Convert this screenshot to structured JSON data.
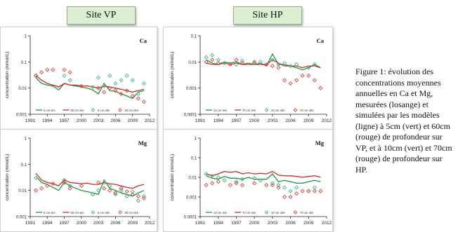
{
  "tabs": {
    "vp": "Site VP",
    "hp": "Site HP"
  },
  "caption": "Figure 1: évolution des concentrations moyennes annuelles en Ca et Mg, mesurées (losange) et simulées par les modèles (ligne) à 5cm (vert) et 60cm (rouge) de profondeur sur VP, et à 10cm (vert) et 70cm (rouge) de profondeur sur HP.",
  "colors": {
    "green": "#1a9641",
    "red": "#cc2a2a",
    "obs_green": "#3db58a",
    "obs_red": "#d9423a"
  },
  "chart_data": [
    {
      "type": "line",
      "element": "Ca",
      "site": "VP",
      "ylabel": "concentration (mmol/L)",
      "yscale": "log",
      "ylim": [
        0.001,
        1
      ],
      "yticks": [
        "0.001",
        "0.01",
        "0.1",
        "1"
      ],
      "xticks": [
        "1991",
        "1994",
        "1997",
        "2000",
        "2003",
        "2006",
        "2009",
        "2012"
      ],
      "xlim": [
        1991,
        2012
      ],
      "legend": [
        "5 cm sim",
        "60 cm sim",
        "5 cm obs",
        "60 cm obs"
      ],
      "series": [
        {
          "name": "5 cm sim",
          "kind": "line",
          "color": "green",
          "x": [
            1992,
            1993,
            1994,
            1995,
            1996,
            1997,
            1998,
            1999,
            2000,
            2001,
            2002,
            2003,
            2004,
            2005,
            2006,
            2007,
            2008,
            2009,
            2010,
            2011
          ],
          "y": [
            0.025,
            0.015,
            0.013,
            0.012,
            0.0085,
            0.015,
            0.013,
            0.012,
            0.011,
            0.01,
            0.0085,
            0.006,
            0.015,
            0.008,
            0.0075,
            0.006,
            0.005,
            0.004,
            0.007,
            0.008
          ]
        },
        {
          "name": "60 cm sim",
          "kind": "line",
          "color": "red",
          "x": [
            1992,
            1993,
            1994,
            1995,
            1996,
            1997,
            1998,
            1999,
            2000,
            2001,
            2002,
            2003,
            2004,
            2005,
            2006,
            2007,
            2008,
            2009,
            2010,
            2011
          ],
          "y": [
            0.03,
            0.02,
            0.015,
            0.013,
            0.011,
            0.015,
            0.013,
            0.013,
            0.012,
            0.012,
            0.011,
            0.01,
            0.012,
            0.011,
            0.01,
            0.009,
            0.008,
            0.007,
            0.008,
            0.009
          ]
        },
        {
          "name": "5 cm obs",
          "kind": "diamond",
          "color": "obs_green",
          "x": [
            1992,
            1997,
            1998,
            2002,
            2003,
            2004,
            2005,
            2006,
            2007,
            2008,
            2009,
            2010,
            2011
          ],
          "y": [
            0.03,
            0.03,
            0.02,
            0.011,
            0.025,
            0.012,
            0.03,
            0.015,
            0.02,
            0.03,
            0.02,
            0.006,
            0.015
          ]
        },
        {
          "name": "60 cm obs",
          "kind": "diamond",
          "color": "obs_red",
          "x": [
            1992,
            1993,
            1994,
            1995,
            1997,
            1998,
            2000,
            2003,
            2004,
            2005,
            2006,
            2007,
            2008,
            2009,
            2010,
            2011
          ],
          "y": [
            0.03,
            0.04,
            0.05,
            0.05,
            0.05,
            0.04,
            0.012,
            0.01,
            0.007,
            0.01,
            0.008,
            0.006,
            0.008,
            0.005,
            0.004,
            0.003
          ]
        }
      ]
    },
    {
      "type": "line",
      "element": "Ca",
      "site": "HP",
      "ylabel": "concentration (mmol/L)",
      "yscale": "log",
      "ylim": [
        0.0001,
        0.1
      ],
      "yticks": [
        "0.0001",
        "0.001",
        "0.01",
        "0.1"
      ],
      "xticks": [
        "1991",
        "1994",
        "1997",
        "2000",
        "2003",
        "2006",
        "2009",
        "2012"
      ],
      "xlim": [
        1991,
        2012
      ],
      "legend": [
        "10 cm sim",
        "70 cm sim",
        "10 cm obs",
        "70 cm obs"
      ],
      "series": [
        {
          "name": "10 cm sim",
          "kind": "line",
          "color": "green",
          "x": [
            1992,
            1993,
            1994,
            1995,
            1996,
            1997,
            1998,
            1999,
            2000,
            2001,
            2002,
            2003,
            2004,
            2005,
            2006,
            2007,
            2008,
            2009,
            2010,
            2011
          ],
          "y": [
            0.012,
            0.009,
            0.008,
            0.01,
            0.009,
            0.01,
            0.008,
            0.009,
            0.008,
            0.009,
            0.007,
            0.02,
            0.008,
            0.008,
            0.007,
            0.006,
            0.005,
            0.006,
            0.008,
            0.006
          ]
        },
        {
          "name": "70 cm sim",
          "kind": "line",
          "color": "red",
          "x": [
            1992,
            1993,
            1994,
            1995,
            1996,
            1997,
            1998,
            1999,
            2000,
            2001,
            2002,
            2003,
            2004,
            2005,
            2006,
            2007,
            2008,
            2009,
            2010,
            2011
          ],
          "y": [
            0.009,
            0.008,
            0.008,
            0.009,
            0.008,
            0.009,
            0.008,
            0.008,
            0.008,
            0.008,
            0.008,
            0.012,
            0.009,
            0.007,
            0.007,
            0.007,
            0.006,
            0.007,
            0.007,
            0.006
          ]
        },
        {
          "name": "10 cm obs",
          "kind": "diamond",
          "color": "obs_green",
          "x": [
            1992,
            1993,
            1994,
            1995,
            1997,
            1998,
            2000,
            2001,
            2003,
            2004,
            2005,
            2006,
            2007,
            2009,
            2010
          ],
          "y": [
            0.015,
            0.018,
            0.012,
            0.009,
            0.008,
            0.011,
            0.009,
            0.01,
            0.012,
            0.008,
            0.009,
            0.007,
            0.008,
            0.006,
            0.008
          ]
        },
        {
          "name": "70 cm obs",
          "kind": "diamond",
          "color": "obs_red",
          "x": [
            1992,
            1993,
            1994,
            1996,
            1997,
            1998,
            2000,
            2002,
            2003,
            2004,
            2005,
            2006,
            2007,
            2008,
            2009,
            2010,
            2011
          ],
          "y": [
            0.01,
            0.012,
            0.009,
            0.008,
            0.012,
            0.009,
            0.01,
            0.008,
            0.007,
            0.006,
            0.002,
            0.0015,
            0.002,
            0.003,
            0.003,
            0.002,
            0.001
          ]
        }
      ]
    },
    {
      "type": "line",
      "element": "Mg",
      "site": "VP",
      "ylabel": "concentration (mmol/L)",
      "yscale": "log",
      "ylim": [
        0.001,
        1
      ],
      "yticks": [
        "0.001",
        "0.01",
        "0.1",
        "1"
      ],
      "xticks": [
        "1991",
        "1994",
        "1997",
        "2000",
        "2003",
        "2006",
        "2009",
        "2012"
      ],
      "xlim": [
        1991,
        2012
      ],
      "legend": [
        "5 cm sim",
        "60 cm sim",
        "5 cm obs",
        "60 cm obs"
      ],
      "series": [
        {
          "name": "5 cm sim",
          "kind": "line",
          "color": "green",
          "x": [
            1992,
            1993,
            1994,
            1995,
            1996,
            1997,
            1998,
            1999,
            2000,
            2001,
            2002,
            2003,
            2004,
            2005,
            2006,
            2007,
            2008,
            2009,
            2010,
            2011
          ],
          "y": [
            0.035,
            0.02,
            0.017,
            0.013,
            0.01,
            0.02,
            0.015,
            0.012,
            0.01,
            0.009,
            0.008,
            0.007,
            0.025,
            0.012,
            0.01,
            0.008,
            0.007,
            0.006,
            0.008,
            0.01
          ]
        },
        {
          "name": "60 cm sim",
          "kind": "line",
          "color": "red",
          "x": [
            1992,
            1993,
            1994,
            1995,
            1996,
            1997,
            1998,
            1999,
            2000,
            2001,
            2002,
            2003,
            2004,
            2005,
            2006,
            2007,
            2008,
            2009,
            2010,
            2011
          ],
          "y": [
            0.045,
            0.025,
            0.02,
            0.018,
            0.015,
            0.025,
            0.02,
            0.019,
            0.018,
            0.019,
            0.017,
            0.017,
            0.02,
            0.018,
            0.017,
            0.015,
            0.013,
            0.012,
            0.015,
            0.017
          ]
        },
        {
          "name": "5 cm obs",
          "kind": "diamond",
          "color": "obs_green",
          "x": [
            1992,
            1997,
            1998,
            2002,
            2003,
            2004,
            2005,
            2006,
            2007,
            2008,
            2009,
            2010,
            2011
          ],
          "y": [
            0.03,
            0.025,
            0.015,
            0.007,
            0.01,
            0.02,
            0.015,
            0.007,
            0.01,
            0.006,
            0.009,
            0.004,
            0.006
          ]
        },
        {
          "name": "60 cm obs",
          "kind": "diamond",
          "color": "obs_red",
          "x": [
            1992,
            1993,
            1994,
            1995,
            1997,
            1998,
            2000,
            2003,
            2004,
            2005,
            2006,
            2007,
            2008,
            2009,
            2010,
            2011
          ],
          "y": [
            0.01,
            0.012,
            0.015,
            0.018,
            0.02,
            0.012,
            0.015,
            0.02,
            0.012,
            0.01,
            0.008,
            0.012,
            0.009,
            0.007,
            0.006,
            0.005
          ]
        }
      ]
    },
    {
      "type": "line",
      "element": "Mg",
      "site": "HP",
      "ylabel": "concentration (mmol/L)",
      "yscale": "log",
      "ylim": [
        0.0001,
        1
      ],
      "yticks": [
        "0.0001",
        "0.001",
        "0.01",
        "0.1",
        "1"
      ],
      "xticks": [
        "1991",
        "1994",
        "1997",
        "2000",
        "2003",
        "2006",
        "2009",
        "2012"
      ],
      "xlim": [
        1991,
        2012
      ],
      "legend": [
        "10 cm sim",
        "70 cm sim",
        "10 cm obs",
        "70 cm obs"
      ],
      "series": [
        {
          "name": "10 cm sim",
          "kind": "line",
          "color": "green",
          "x": [
            1992,
            1993,
            1994,
            1995,
            1996,
            1997,
            1998,
            1999,
            2000,
            2001,
            2002,
            2003,
            2004,
            2005,
            2006,
            2007,
            2008,
            2009,
            2010,
            2011
          ],
          "y": [
            0.012,
            0.009,
            0.008,
            0.011,
            0.009,
            0.009,
            0.008,
            0.01,
            0.008,
            0.008,
            0.008,
            0.015,
            0.006,
            0.007,
            0.006,
            0.005,
            0.005,
            0.006,
            0.007,
            0.006
          ]
        },
        {
          "name": "70 cm sim",
          "kind": "line",
          "color": "red",
          "x": [
            1992,
            1993,
            1994,
            1995,
            1996,
            1997,
            1998,
            1999,
            2000,
            2001,
            2002,
            2003,
            2004,
            2005,
            2006,
            2007,
            2008,
            2009,
            2010,
            2011
          ],
          "y": [
            0.015,
            0.012,
            0.015,
            0.02,
            0.018,
            0.02,
            0.015,
            0.017,
            0.015,
            0.016,
            0.015,
            0.02,
            0.013,
            0.012,
            0.012,
            0.011,
            0.01,
            0.011,
            0.012,
            0.01
          ]
        },
        {
          "name": "10 cm obs",
          "kind": "diamond",
          "color": "obs_green",
          "x": [
            1992,
            1993,
            1994,
            1995,
            1997,
            1998,
            2000,
            2001,
            2003,
            2004,
            2005,
            2006,
            2007,
            2009,
            2010
          ],
          "y": [
            0.015,
            0.012,
            0.01,
            0.007,
            0.006,
            0.008,
            0.009,
            0.007,
            0.005,
            0.004,
            0.003,
            0.002,
            0.003,
            0.002,
            0.003
          ]
        },
        {
          "name": "70 cm obs",
          "kind": "diamond",
          "color": "obs_red",
          "x": [
            1992,
            1993,
            1994,
            1996,
            1997,
            1998,
            2000,
            2002,
            2003,
            2004,
            2005,
            2006,
            2007,
            2008,
            2009,
            2010,
            2011
          ],
          "y": [
            0.004,
            0.005,
            0.006,
            0.004,
            0.005,
            0.004,
            0.005,
            0.004,
            0.004,
            0.003,
            0.001,
            0.001,
            0.0015,
            0.002,
            0.002,
            0.002,
            0.002
          ]
        }
      ]
    }
  ]
}
